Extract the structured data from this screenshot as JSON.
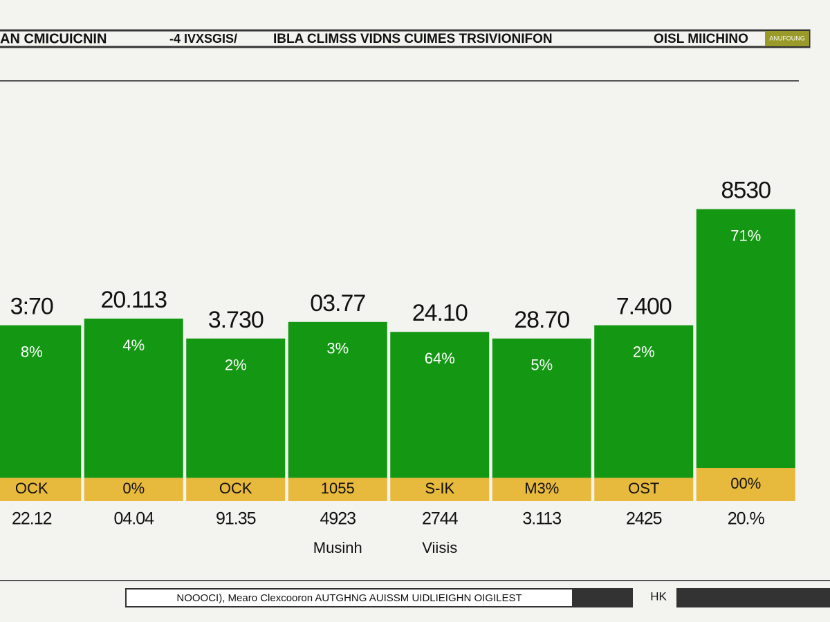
{
  "header": {
    "brand": "AN CMICUICNIN",
    "tag": "-4 IVXSGIS/",
    "title": "IBLA CLIMSS VIDNS CUIMES TRSIVIONIFON",
    "right": "OISL MIICHINO",
    "badge": "ANUFOUNG"
  },
  "chart_data": {
    "type": "bar",
    "stacked": true,
    "ylim": [
      0,
      100
    ],
    "series": [
      {
        "color": "#e7b93c",
        "values": [
          7,
          7,
          7,
          7,
          7,
          7,
          7,
          10
        ]
      },
      {
        "color": "#149814",
        "values": [
          46,
          48,
          42,
          47,
          44,
          42,
          46,
          78
        ]
      }
    ],
    "top_labels": [
      "3:70",
      "20.113",
      "3.730",
      "03.77",
      "24.10",
      "28.70",
      "7.400",
      "8530"
    ],
    "inner_labels": [
      "8%",
      "4%",
      "2%",
      "3%",
      "64%",
      "5%",
      "2%",
      "71%"
    ],
    "base_labels": [
      "OCK",
      "0%",
      "OCK",
      "1055",
      "S-IK",
      "M3%",
      "OST",
      "00%"
    ],
    "categories": [
      "22.12",
      "04.04",
      "91.35",
      "4923",
      "2744",
      "3.113",
      "2425",
      "20.%"
    ],
    "sub_labels": [
      null,
      null,
      null,
      "Musinh",
      "Viisis",
      null,
      null,
      null
    ]
  },
  "footer": {
    "note": "NOOOCI), Mearo Clexcooron AUTGHNG AUISSM UIDLIEIGHN OIGILEST",
    "right": "HK"
  }
}
